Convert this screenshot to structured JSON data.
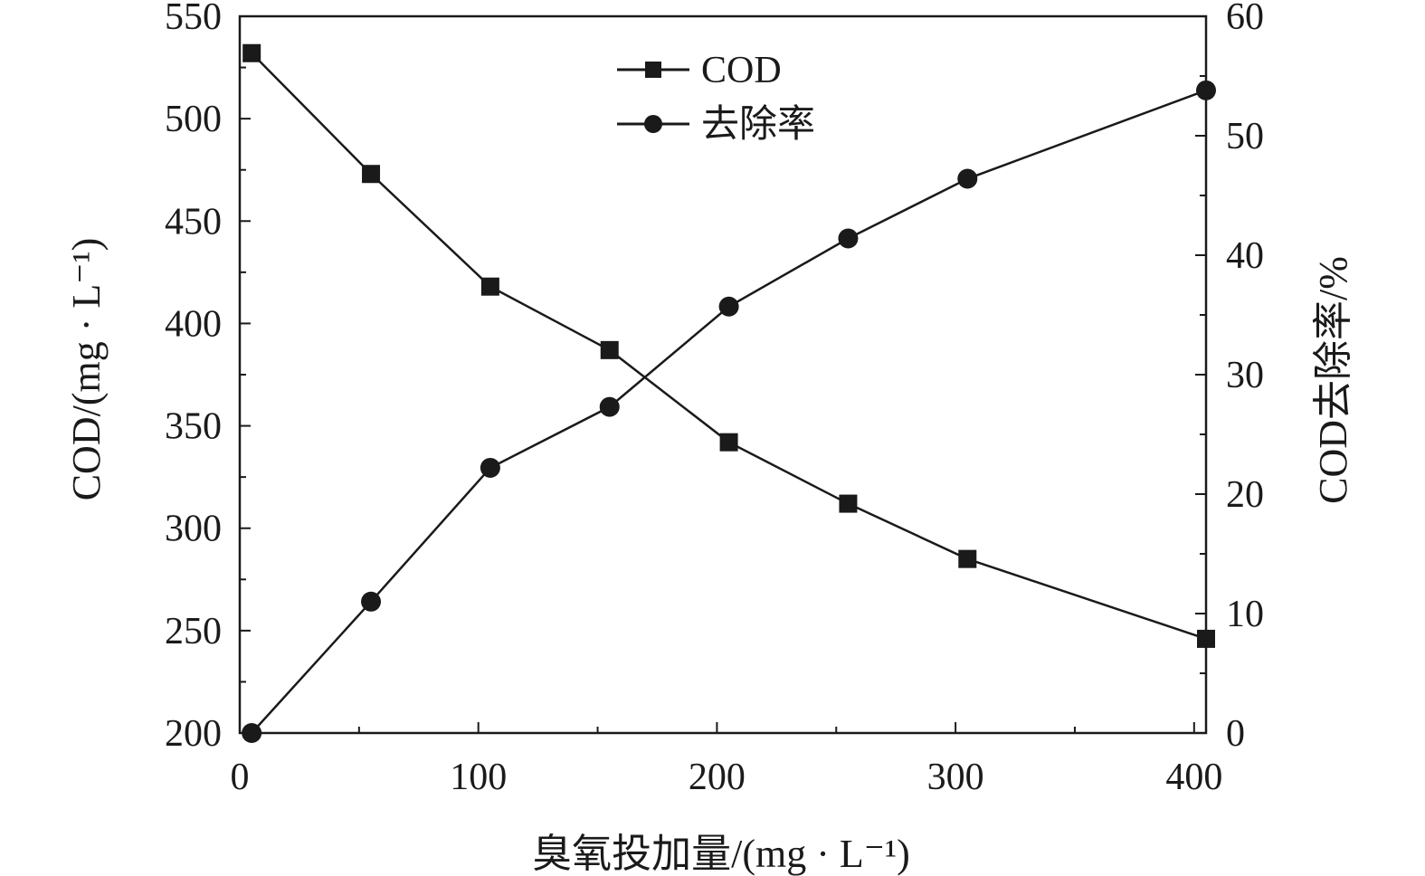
{
  "chart_data": {
    "type": "line",
    "x": [
      5,
      55,
      105,
      155,
      205,
      255,
      305,
      405
    ],
    "xlabel": "臭氧投加量/(mg · L⁻¹)",
    "xlim": [
      0,
      405
    ],
    "x_ticks": [
      "0",
      "100",
      "200",
      "300",
      "400"
    ],
    "ylabel_left": "COD/(mg · L⁻¹)",
    "ylim_left": [
      200,
      550
    ],
    "y_ticks_left": [
      "200",
      "250",
      "300",
      "350",
      "400",
      "450",
      "500",
      "550"
    ],
    "ylabel_right": "COD去除率/%",
    "ylim_right": [
      0,
      60
    ],
    "y_ticks_right": [
      "0",
      "10",
      "20",
      "30",
      "40",
      "50",
      "60"
    ],
    "grid": false,
    "legend_position": "top-center",
    "series": [
      {
        "name": "COD",
        "axis": "left",
        "marker": "square",
        "values": [
          532,
          473,
          418,
          387,
          342,
          312,
          285,
          246
        ]
      },
      {
        "name": "去除率",
        "axis": "right",
        "marker": "circle",
        "values": [
          0,
          11,
          22.2,
          27.3,
          35.7,
          41.4,
          46.4,
          53.8
        ]
      }
    ]
  }
}
